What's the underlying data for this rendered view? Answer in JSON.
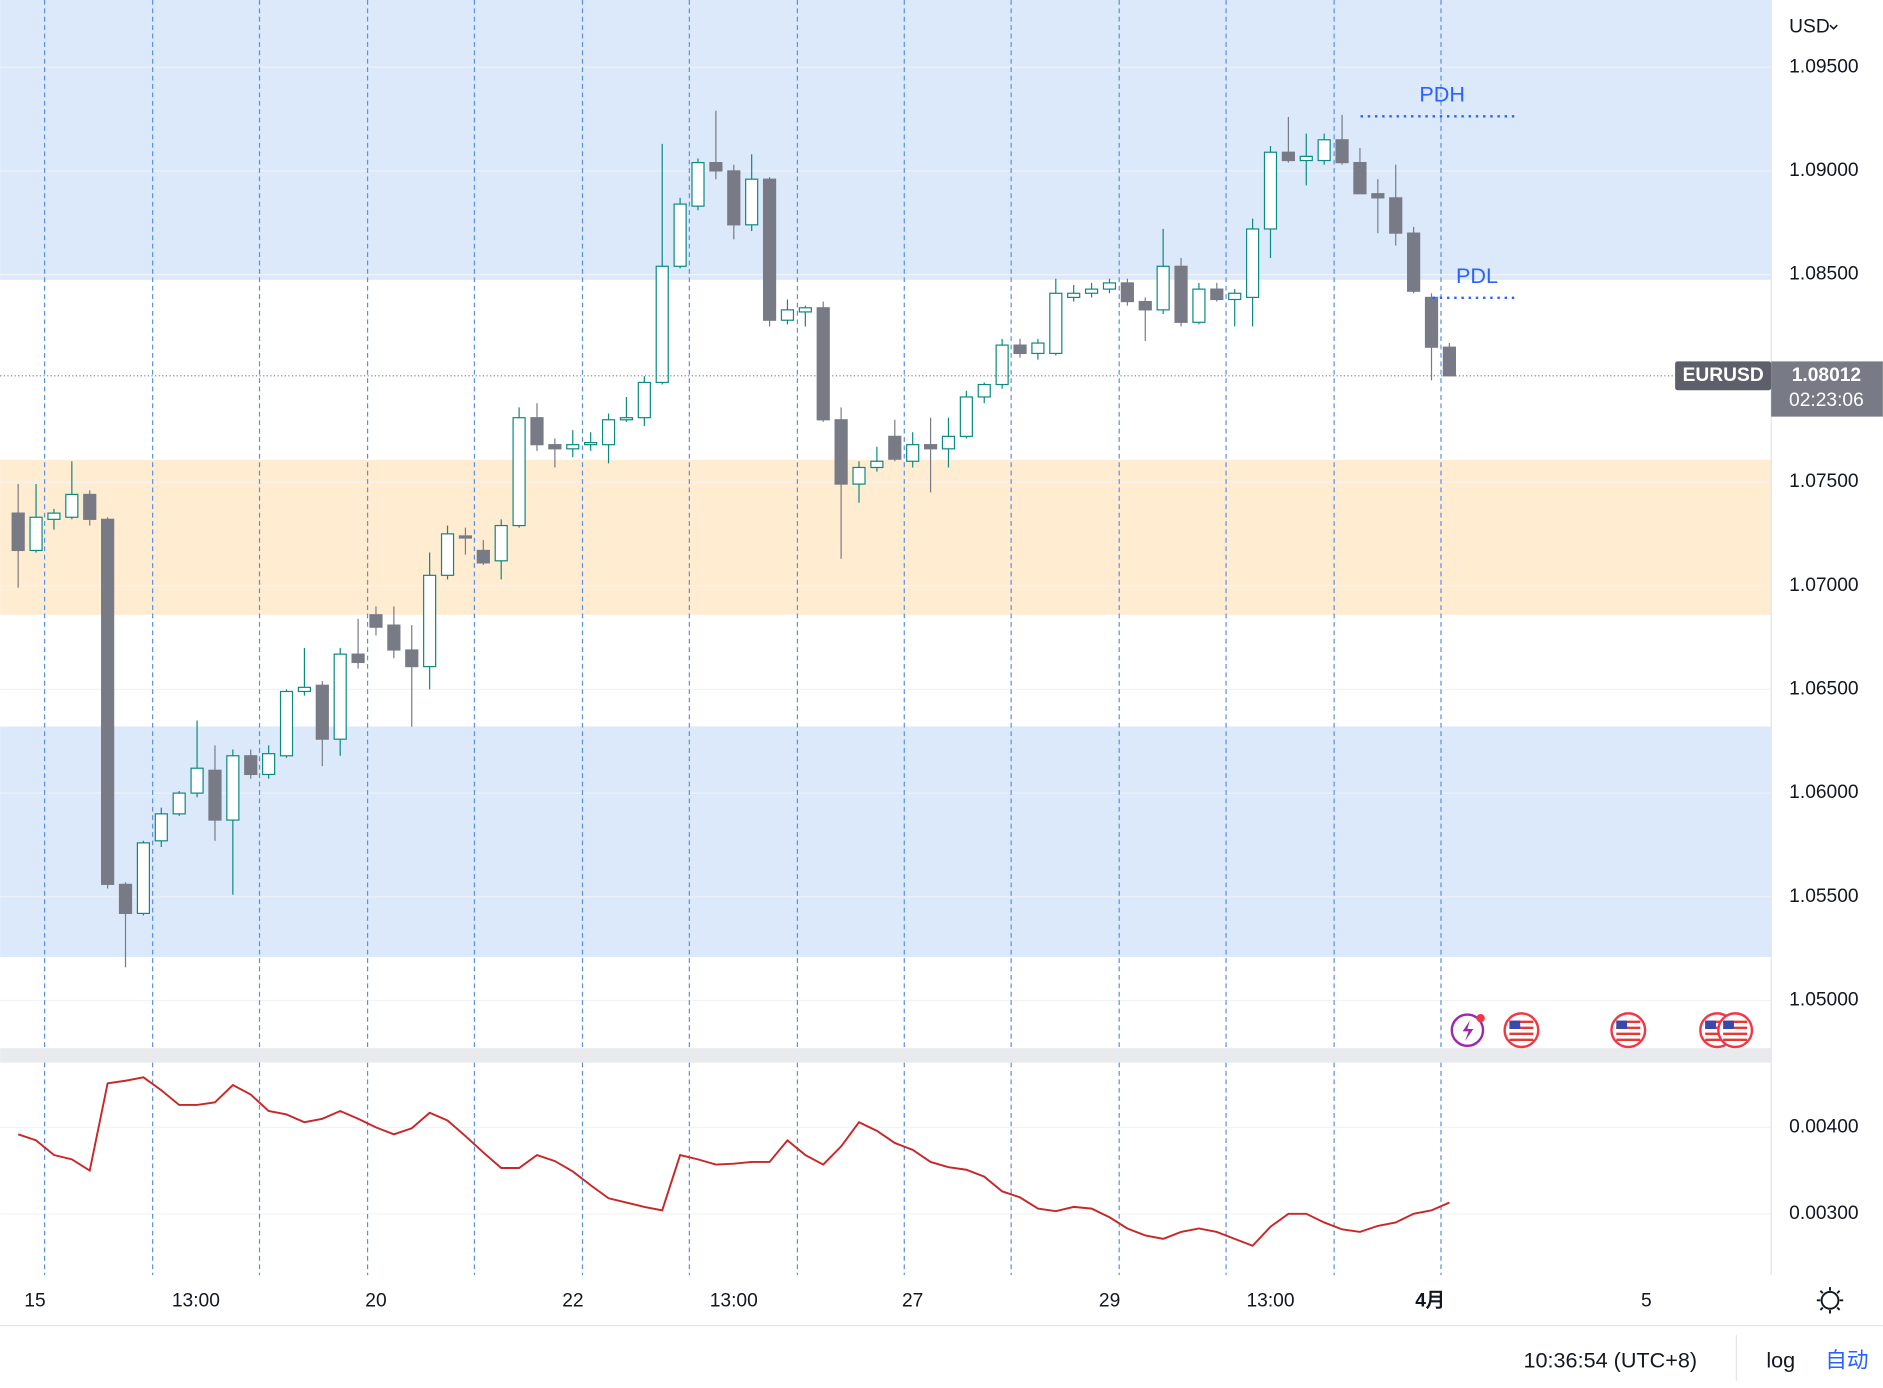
{
  "chart_data": {
    "type": "candlestick",
    "currency": "USD",
    "ylim": [
      1.0477,
      1.09824
    ],
    "yticks": [
      {
        "value": 1.095,
        "label": "1.09500"
      },
      {
        "value": 1.09,
        "label": "1.09000"
      },
      {
        "value": 1.085,
        "label": "1.08500"
      },
      {
        "value": 1.075,
        "label": "1.07500"
      },
      {
        "value": 1.07,
        "label": "1.07000"
      },
      {
        "value": 1.065,
        "label": "1.06500"
      },
      {
        "value": 1.06,
        "label": "1.06000"
      },
      {
        "value": 1.055,
        "label": "1.05500"
      },
      {
        "value": 1.05,
        "label": "1.05000"
      }
    ],
    "x_labels": [
      "15",
      "13:00",
      "20",
      "22",
      "13:00",
      "27",
      "29",
      "13:00",
      "4月",
      "5"
    ],
    "up_color": "#0b8a80",
    "down_color": "#787b86",
    "open": [
      1.0735,
      1.0717,
      1.0732,
      1.0733,
      1.0744,
      1.0732,
      1.0556,
      1.0542,
      1.0577,
      1.059,
      1.06,
      1.0611,
      1.0587,
      1.0618,
      1.0609,
      1.0618,
      1.0649,
      1.0652,
      1.0626,
      1.0667,
      1.0686,
      1.0681,
      1.0669,
      1.0661,
      1.0705,
      1.0724,
      1.0717,
      1.0712,
      1.0729,
      1.0781,
      1.0768,
      1.0766,
      1.0768,
      1.0768,
      1.078,
      1.0781,
      1.0798,
      1.0854,
      1.0883,
      1.0904,
      1.09,
      1.0874,
      1.0896,
      1.0828,
      1.0832,
      1.0834,
      1.078,
      1.0749,
      1.0757,
      1.0772,
      1.076,
      1.0768,
      1.0766,
      1.0772,
      1.0791,
      1.0797,
      1.0816,
      1.0812,
      1.0812,
      1.0839,
      1.0841,
      1.0843,
      1.0846,
      1.0837,
      1.0833,
      1.0854,
      1.0827,
      1.0843,
      1.0838,
      1.0839,
      1.0872,
      1.0909,
      1.0905,
      1.0905,
      1.0915,
      1.0904,
      1.0889,
      1.0887,
      1.087,
      1.0839,
      1.0815
    ],
    "high": [
      1.0749,
      1.0749,
      1.0737,
      1.076,
      1.0746,
      1.0733,
      1.0557,
      1.0577,
      1.0593,
      1.0601,
      1.0635,
      1.0623,
      1.0621,
      1.0621,
      1.0623,
      1.065,
      1.067,
      1.0654,
      1.067,
      1.0684,
      1.069,
      1.069,
      1.0681,
      1.0716,
      1.0729,
      1.0728,
      1.0722,
      1.0732,
      1.0786,
      1.0788,
      1.0771,
      1.0775,
      1.0774,
      1.0783,
      1.0791,
      1.0801,
      1.0913,
      1.0887,
      1.0906,
      1.0929,
      1.0903,
      1.0908,
      1.0897,
      1.0838,
      1.0835,
      1.0837,
      1.0786,
      1.076,
      1.0767,
      1.078,
      1.0774,
      1.0781,
      1.0781,
      1.0794,
      1.0798,
      1.0819,
      1.0819,
      1.0819,
      1.0848,
      1.0845,
      1.0846,
      1.0848,
      1.0848,
      1.0839,
      1.0872,
      1.0858,
      1.0846,
      1.0846,
      1.0843,
      1.0877,
      1.0912,
      1.0926,
      1.0918,
      1.0918,
      1.0927,
      1.0911,
      1.0896,
      1.0903,
      1.0873,
      1.0841,
      1.0817
    ],
    "low": [
      1.0699,
      1.0716,
      1.0727,
      1.0732,
      1.0729,
      1.0554,
      1.0516,
      1.0541,
      1.0574,
      1.0589,
      1.0598,
      1.0577,
      1.0551,
      1.0607,
      1.0607,
      1.0617,
      1.0647,
      1.0613,
      1.0618,
      1.066,
      1.0676,
      1.0665,
      1.0632,
      1.065,
      1.0703,
      1.0715,
      1.071,
      1.0703,
      1.0728,
      1.0765,
      1.0757,
      1.0762,
      1.0765,
      1.0759,
      1.0779,
      1.0777,
      1.0797,
      1.0853,
      1.0881,
      1.0896,
      1.0867,
      1.0871,
      1.0825,
      1.0826,
      1.0825,
      1.0779,
      1.0713,
      1.074,
      1.0755,
      1.076,
      1.0757,
      1.0745,
      1.0757,
      1.0771,
      1.0788,
      1.0795,
      1.081,
      1.0809,
      1.0811,
      1.0837,
      1.0839,
      1.0841,
      1.0835,
      1.0818,
      1.0831,
      1.0825,
      1.0826,
      1.0837,
      1.0825,
      1.0825,
      1.0858,
      1.0904,
      1.0893,
      1.0903,
      1.0903,
      1.0889,
      1.087,
      1.0864,
      1.0841,
      1.0799,
      1.0801
    ],
    "close": [
      1.0717,
      1.0733,
      1.0735,
      1.0744,
      1.0732,
      1.0556,
      1.0542,
      1.0576,
      1.059,
      1.06,
      1.0612,
      1.0587,
      1.0618,
      1.0609,
      1.0619,
      1.0649,
      1.0651,
      1.0626,
      1.0667,
      1.0663,
      1.068,
      1.0669,
      1.0661,
      1.0705,
      1.0725,
      1.0723,
      1.0711,
      1.0729,
      1.0781,
      1.0768,
      1.0766,
      1.0768,
      1.0769,
      1.078,
      1.0781,
      1.0798,
      1.0854,
      1.0884,
      1.0904,
      1.09,
      1.0874,
      1.0896,
      1.0828,
      1.0833,
      1.0834,
      1.078,
      1.0749,
      1.0757,
      1.076,
      1.0761,
      1.0768,
      1.0766,
      1.0772,
      1.0791,
      1.0797,
      1.0816,
      1.0812,
      1.0817,
      1.0841,
      1.0841,
      1.0843,
      1.0846,
      1.0837,
      1.0833,
      1.0854,
      1.0827,
      1.0843,
      1.0838,
      1.0841,
      1.0872,
      1.0909,
      1.0905,
      1.0907,
      1.0915,
      1.0904,
      1.0889,
      1.0887,
      1.087,
      1.0842,
      1.0815,
      1.08012
    ],
    "zones": [
      {
        "from": 1.08475,
        "to": 1.09824,
        "color": "#dbe9fb"
      },
      {
        "from": 1.0686,
        "to": 1.07607,
        "color": "#ffecd1"
      },
      {
        "from": 1.0521,
        "to": 1.06321,
        "color": "#dbe9fb"
      }
    ],
    "levels": [
      {
        "label": "PDH",
        "value": 1.09263,
        "color": "#2962ff"
      },
      {
        "label": "PDL",
        "value": 1.08388,
        "color": "#2962ff"
      }
    ],
    "last_price": {
      "symbol": "EURUSD",
      "value": 1.08012,
      "countdown": "02:23:06"
    },
    "indicator": {
      "color": "#c62828",
      "ylim": [
        0.00229,
        0.00475
      ],
      "yticks": [
        {
          "value": 0.004,
          "label": "0.00400"
        },
        {
          "value": 0.003,
          "label": "0.00300"
        }
      ],
      "values": [
        0.00392,
        0.00385,
        0.00368,
        0.00363,
        0.0035,
        0.00451,
        0.00454,
        0.00458,
        0.00443,
        0.00426,
        0.00426,
        0.00429,
        0.00449,
        0.00438,
        0.00419,
        0.00415,
        0.00406,
        0.0041,
        0.00419,
        0.0041,
        0.004,
        0.00392,
        0.00399,
        0.00417,
        0.00408,
        0.0039,
        0.00371,
        0.00353,
        0.00353,
        0.00368,
        0.00361,
        0.00349,
        0.00333,
        0.00318,
        0.00313,
        0.00308,
        0.00304,
        0.00368,
        0.00363,
        0.00357,
        0.00358,
        0.0036,
        0.0036,
        0.00385,
        0.00368,
        0.00357,
        0.00378,
        0.00406,
        0.00396,
        0.00382,
        0.00374,
        0.0036,
        0.00354,
        0.00351,
        0.00343,
        0.00326,
        0.00319,
        0.00306,
        0.00303,
        0.00308,
        0.00306,
        0.00296,
        0.00283,
        0.00275,
        0.00271,
        0.00279,
        0.00283,
        0.00279,
        0.00271,
        0.00263,
        0.00285,
        0.003,
        0.003,
        0.0029,
        0.00282,
        0.00279,
        0.00286,
        0.0029,
        0.003,
        0.00304,
        0.00313
      ]
    }
  },
  "status": {
    "time": "10:36:54 (UTC+8)",
    "log": "log",
    "auto": "自动"
  }
}
